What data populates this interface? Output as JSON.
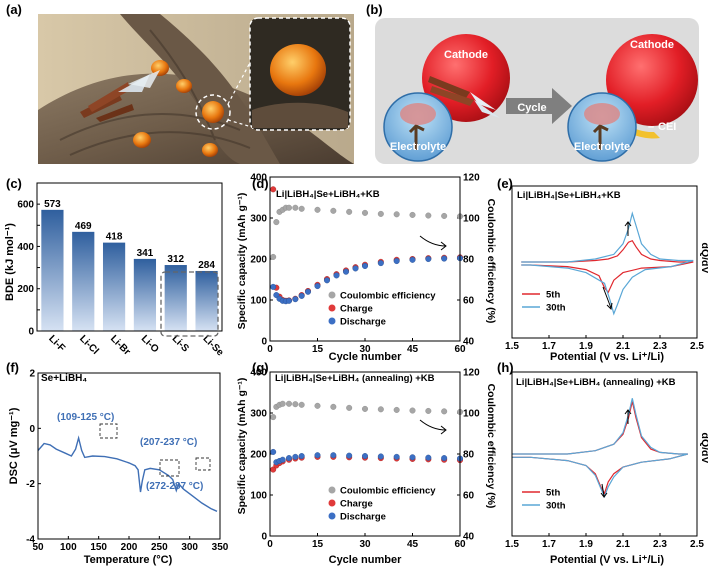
{
  "panels": {
    "a": "(a)",
    "b": "(b)",
    "c": "(c)",
    "d": "(d)",
    "e": "(e)",
    "f": "(f)",
    "g": "(g)",
    "h": "(h)"
  },
  "illustration_b": {
    "cathode": "Cathode",
    "electrolyte": "Electrolyte",
    "cycle": "Cycle",
    "cei": "CEI",
    "cei_prefix": "–"
  },
  "colors": {
    "bar_top": "#2f5f9e",
    "bar_bottom": "#cfdcf0",
    "grey_pt": "#a6a6a6",
    "red_pt": "#e03a3a",
    "blue_pt": "#3c6fc4",
    "curve_red": "#e0282e",
    "curve_blue": "#5aa7d6",
    "dsc": "#3f6fb5"
  },
  "chart_data": [
    {
      "panel": "c",
      "type": "bar",
      "ylabel": "BDE (kJ mol⁻¹)",
      "ylim": [
        0,
        700
      ],
      "yticks": [
        "0",
        "100",
        "200",
        "300",
        "400",
        "500",
        "600",
        "700"
      ],
      "categories": [
        "Li-F",
        "Li-Cl",
        "Li-Br",
        "Li-O",
        "Li-S",
        "Li-Se"
      ],
      "values": [
        573,
        469,
        418,
        341,
        312,
        284
      ],
      "value_labels": [
        "573",
        "469",
        "418",
        "341",
        "312",
        "284"
      ]
    },
    {
      "panel": "d",
      "type": "scatter",
      "title": "Li|LiBH₄|Se+LiBH₄+KB",
      "xlabel": "Cycle number",
      "ylabel": "Specific capacity (mAh g⁻¹)",
      "ylabel_right": "Coulombic efficiency (%)",
      "xlim": [
        0,
        60
      ],
      "ylim": [
        0,
        400
      ],
      "ylim_right": [
        40,
        120
      ],
      "xticks": [
        "0",
        "15",
        "30",
        "45",
        "60"
      ],
      "yticks": [
        "0",
        "100",
        "200",
        "300",
        "400"
      ],
      "yticks_right": [
        "40",
        "60",
        "80",
        "100",
        "120"
      ],
      "legend": [
        "Coulombic efficiency",
        "Charge",
        "Discharge"
      ],
      "charge": [
        [
          1,
          370
        ],
        [
          2,
          130
        ],
        [
          3,
          108
        ],
        [
          4,
          100
        ],
        [
          5,
          98
        ],
        [
          6,
          99
        ],
        [
          8,
          103
        ],
        [
          10,
          112
        ],
        [
          12,
          122
        ],
        [
          15,
          137
        ],
        [
          18,
          151
        ],
        [
          21,
          163
        ],
        [
          24,
          172
        ],
        [
          27,
          180
        ],
        [
          30,
          186
        ],
        [
          35,
          193
        ],
        [
          40,
          198
        ],
        [
          45,
          200
        ],
        [
          50,
          202
        ],
        [
          55,
          203
        ],
        [
          60,
          204
        ]
      ],
      "discharge": [
        [
          1,
          132
        ],
        [
          2,
          112
        ],
        [
          3,
          103
        ],
        [
          4,
          98
        ],
        [
          5,
          97
        ],
        [
          6,
          98
        ],
        [
          8,
          102
        ],
        [
          10,
          110
        ],
        [
          12,
          120
        ],
        [
          15,
          134
        ],
        [
          18,
          148
        ],
        [
          21,
          160
        ],
        [
          24,
          169
        ],
        [
          27,
          177
        ],
        [
          30,
          183
        ],
        [
          35,
          190
        ],
        [
          40,
          195
        ],
        [
          45,
          198
        ],
        [
          50,
          200
        ],
        [
          55,
          201
        ],
        [
          60,
          202
        ]
      ],
      "coulombic_efficiency": [
        [
          1,
          81
        ],
        [
          2,
          98
        ],
        [
          3,
          103
        ],
        [
          4,
          104
        ],
        [
          5,
          105
        ],
        [
          6,
          105
        ],
        [
          8,
          105
        ],
        [
          10,
          104.5
        ],
        [
          15,
          104
        ],
        [
          20,
          103.5
        ],
        [
          25,
          103
        ],
        [
          30,
          102.5
        ],
        [
          35,
          102
        ],
        [
          40,
          101.8
        ],
        [
          45,
          101.5
        ],
        [
          50,
          101.2
        ],
        [
          55,
          101
        ],
        [
          60,
          100.8
        ]
      ]
    },
    {
      "panel": "e",
      "type": "line",
      "title": "Li|LiBH₄|Se+LiBH₄+KB",
      "xlabel": "Potential (V vs. Li⁺/Li)",
      "ylabel": "dQ/dV",
      "xlim": [
        1.5,
        2.5
      ],
      "xticks": [
        "1.5",
        "1.7",
        "1.9",
        "2.1",
        "2.3",
        "2.5"
      ],
      "series": [
        {
          "name": "5th",
          "points": [
            [
              1.55,
              0.5
            ],
            [
              1.8,
              0.5
            ],
            [
              1.95,
              0.51
            ],
            [
              2.02,
              0.52
            ],
            [
              2.07,
              0.54
            ],
            [
              2.1,
              0.58
            ],
            [
              2.13,
              0.63
            ],
            [
              2.15,
              0.64
            ],
            [
              2.17,
              0.6
            ],
            [
              2.2,
              0.55
            ],
            [
              2.25,
              0.52
            ],
            [
              2.3,
              0.51
            ],
            [
              2.4,
              0.5
            ],
            [
              2.48,
              0.5
            ],
            [
              2.36,
              0.47
            ],
            [
              2.2,
              0.46
            ],
            [
              2.1,
              0.43
            ],
            [
              2.05,
              0.38
            ],
            [
              2.02,
              0.3
            ],
            [
              2.0,
              0.33
            ],
            [
              1.97,
              0.41
            ],
            [
              1.9,
              0.45
            ],
            [
              1.8,
              0.47
            ],
            [
              1.6,
              0.48
            ],
            [
              1.55,
              0.48
            ]
          ]
        },
        {
          "name": "30th",
          "points": [
            [
              1.55,
              0.5
            ],
            [
              1.8,
              0.5
            ],
            [
              1.95,
              0.52
            ],
            [
              2.05,
              0.55
            ],
            [
              2.1,
              0.62
            ],
            [
              2.13,
              0.72
            ],
            [
              2.15,
              0.82
            ],
            [
              2.17,
              0.74
            ],
            [
              2.2,
              0.62
            ],
            [
              2.25,
              0.55
            ],
            [
              2.3,
              0.52
            ],
            [
              2.4,
              0.51
            ],
            [
              2.48,
              0.51
            ],
            [
              2.36,
              0.47
            ],
            [
              2.22,
              0.45
            ],
            [
              2.15,
              0.4
            ],
            [
              2.1,
              0.32
            ],
            [
              2.07,
              0.22
            ],
            [
              2.05,
              0.16
            ],
            [
              2.03,
              0.25
            ],
            [
              2.0,
              0.36
            ],
            [
              1.9,
              0.43
            ],
            [
              1.8,
              0.46
            ],
            [
              1.6,
              0.48
            ],
            [
              1.55,
              0.48
            ]
          ]
        }
      ],
      "legend": [
        "5th",
        "30th"
      ]
    },
    {
      "panel": "f",
      "type": "line",
      "title": "Se+LiBH₄",
      "xlabel": "Temperature (°C)",
      "ylabel": "DSC (μV mg⁻¹)",
      "xlim": [
        50,
        350
      ],
      "ylim": [
        -4,
        2
      ],
      "xticks": [
        "50",
        "100",
        "150",
        "200",
        "250",
        "300",
        "350"
      ],
      "yticks": [
        "-4",
        "-2",
        "0",
        "2"
      ],
      "series": [
        {
          "name": "",
          "points": [
            [
              50,
              -0.8
            ],
            [
              60,
              -0.55
            ],
            [
              70,
              -0.6
            ],
            [
              80,
              -0.75
            ],
            [
              95,
              -0.9
            ],
            [
              105,
              -1.0
            ],
            [
              112,
              -0.75
            ],
            [
              117,
              -0.35
            ],
            [
              122,
              -0.8
            ],
            [
              127,
              -1.05
            ],
            [
              140,
              -1.0
            ],
            [
              160,
              -1.02
            ],
            [
              180,
              -1.1
            ],
            [
              200,
              -1.25
            ],
            [
              210,
              -1.35
            ],
            [
              215,
              -1.5
            ],
            [
              219,
              -2.3
            ],
            [
              222,
              -1.9
            ],
            [
              226,
              -1.5
            ],
            [
              235,
              -1.45
            ],
            [
              250,
              -1.5
            ],
            [
              265,
              -1.7
            ],
            [
              272,
              -1.85
            ],
            [
              278,
              -2.25
            ],
            [
              282,
              -2.0
            ],
            [
              290,
              -2.2
            ],
            [
              305,
              -2.45
            ],
            [
              320,
              -2.7
            ],
            [
              335,
              -2.9
            ],
            [
              345,
              -3.0
            ]
          ]
        }
      ],
      "annotations": [
        "(109-125 °C)",
        "(207-237 °C)",
        "(272-287 °C)"
      ]
    },
    {
      "panel": "g",
      "type": "scatter",
      "title": "Li|LiBH₄|Se+LiBH₄ (annealing) +KB",
      "xlabel": "Cycle number",
      "ylabel": "Specific capacity (mAh g⁻¹)",
      "ylabel_right": "Coulombic efficiency (%)",
      "xlim": [
        0,
        60
      ],
      "ylim": [
        0,
        400
      ],
      "ylim_right": [
        40,
        120
      ],
      "xticks": [
        "0",
        "15",
        "30",
        "45",
        "60"
      ],
      "yticks": [
        "0",
        "100",
        "200",
        "300",
        "400"
      ],
      "yticks_right": [
        "40",
        "60",
        "80",
        "100",
        "120"
      ],
      "legend": [
        "Coulombic efficiency",
        "Charge",
        "Discharge"
      ],
      "charge": [
        [
          1,
          162
        ],
        [
          2,
          172
        ],
        [
          3,
          178
        ],
        [
          4,
          182
        ],
        [
          6,
          186
        ],
        [
          8,
          189
        ],
        [
          10,
          191
        ],
        [
          15,
          193
        ],
        [
          20,
          193
        ],
        [
          25,
          192
        ],
        [
          30,
          191
        ],
        [
          35,
          190
        ],
        [
          40,
          189
        ],
        [
          45,
          188
        ],
        [
          50,
          187
        ],
        [
          55,
          186
        ],
        [
          60,
          185
        ]
      ],
      "discharge": [
        [
          1,
          205
        ],
        [
          2,
          180
        ],
        [
          3,
          183
        ],
        [
          4,
          186
        ],
        [
          6,
          190
        ],
        [
          8,
          193
        ],
        [
          10,
          195
        ],
        [
          15,
          197
        ],
        [
          20,
          197
        ],
        [
          25,
          196
        ],
        [
          30,
          195
        ],
        [
          35,
          194
        ],
        [
          40,
          193
        ],
        [
          45,
          192
        ],
        [
          50,
          191
        ],
        [
          55,
          190
        ],
        [
          60,
          189
        ]
      ],
      "coulombic_efficiency": [
        [
          1,
          98
        ],
        [
          2,
          103
        ],
        [
          3,
          104
        ],
        [
          4,
          104.5
        ],
        [
          6,
          104.5
        ],
        [
          8,
          104.3
        ],
        [
          10,
          104
        ],
        [
          15,
          103.5
        ],
        [
          20,
          103
        ],
        [
          25,
          102.5
        ],
        [
          30,
          102
        ],
        [
          35,
          101.8
        ],
        [
          40,
          101.5
        ],
        [
          45,
          101.2
        ],
        [
          50,
          101
        ],
        [
          55,
          100.8
        ],
        [
          60,
          100.5
        ]
      ]
    },
    {
      "panel": "h",
      "type": "line",
      "title": "Li|LiBH₄|Se+LiBH₄ (annealing) +KB",
      "xlabel": "Potential (V vs. Li⁺/Li)",
      "ylabel": "dQ/dV",
      "xlim": [
        1.5,
        2.5
      ],
      "xticks": [
        "1.5",
        "1.7",
        "1.9",
        "2.1",
        "2.3",
        "2.5"
      ],
      "series": [
        {
          "name": "5th",
          "points": [
            [
              1.5,
              0.5
            ],
            [
              1.8,
              0.5
            ],
            [
              1.95,
              0.52
            ],
            [
              2.05,
              0.56
            ],
            [
              2.1,
              0.62
            ],
            [
              2.13,
              0.72
            ],
            [
              2.15,
              0.82
            ],
            [
              2.17,
              0.72
            ],
            [
              2.2,
              0.6
            ],
            [
              2.25,
              0.53
            ],
            [
              2.3,
              0.51
            ],
            [
              2.4,
              0.5
            ],
            [
              2.45,
              0.5
            ],
            [
              2.35,
              0.47
            ],
            [
              2.2,
              0.45
            ],
            [
              2.1,
              0.42
            ],
            [
              2.05,
              0.38
            ],
            [
              2.02,
              0.33
            ],
            [
              2.0,
              0.26
            ],
            [
              1.98,
              0.3
            ],
            [
              1.95,
              0.38
            ],
            [
              1.9,
              0.43
            ],
            [
              1.8,
              0.46
            ],
            [
              1.6,
              0.48
            ],
            [
              1.5,
              0.48
            ]
          ]
        },
        {
          "name": "30th",
          "points": [
            [
              1.5,
              0.5
            ],
            [
              1.8,
              0.5
            ],
            [
              1.95,
              0.52
            ],
            [
              2.05,
              0.56
            ],
            [
              2.1,
              0.63
            ],
            [
              2.13,
              0.74
            ],
            [
              2.15,
              0.84
            ],
            [
              2.17,
              0.74
            ],
            [
              2.2,
              0.61
            ],
            [
              2.25,
              0.54
            ],
            [
              2.3,
              0.51
            ],
            [
              2.4,
              0.5
            ],
            [
              2.45,
              0.5
            ],
            [
              2.35,
              0.47
            ],
            [
              2.2,
              0.45
            ],
            [
              2.1,
              0.42
            ],
            [
              2.05,
              0.36
            ],
            [
              2.02,
              0.3
            ],
            [
              2.0,
              0.24
            ],
            [
              1.98,
              0.29
            ],
            [
              1.95,
              0.37
            ],
            [
              1.9,
              0.43
            ],
            [
              1.8,
              0.46
            ],
            [
              1.6,
              0.48
            ],
            [
              1.5,
              0.48
            ]
          ]
        }
      ],
      "legend": [
        "5th",
        "30th"
      ]
    }
  ]
}
